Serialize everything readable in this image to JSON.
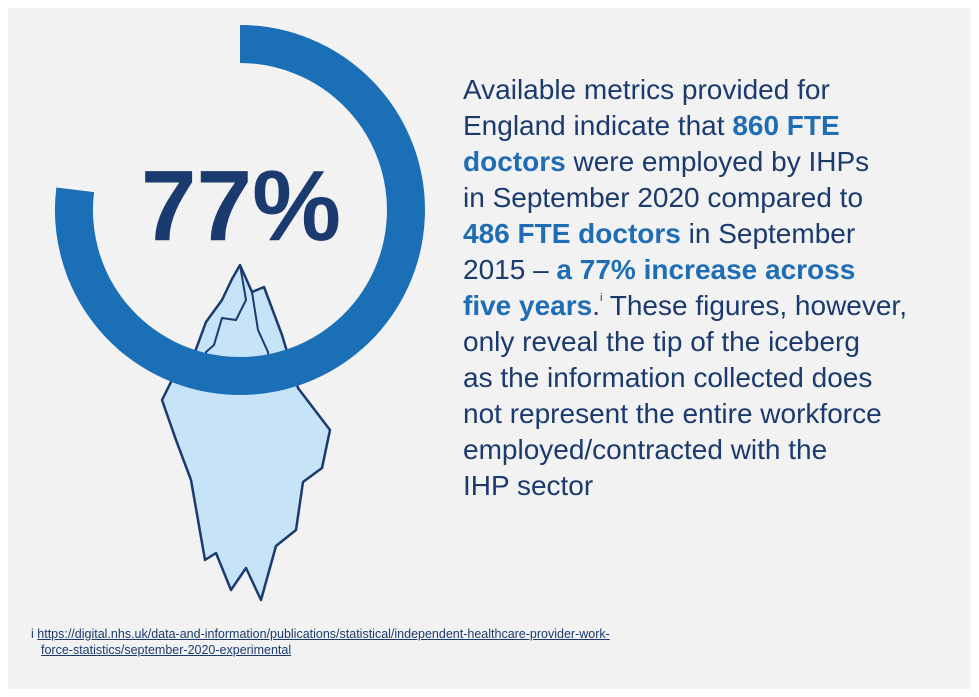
{
  "headline": "77%",
  "body": {
    "lines": [
      [
        {
          "text": "Available metrics provided for"
        }
      ],
      [
        {
          "text": "England indicate that "
        },
        {
          "text": "860 FTE",
          "bold": true
        }
      ],
      [
        {
          "text": "doctors",
          "bold": true
        },
        {
          "text": " were employed by IHPs"
        }
      ],
      [
        {
          "text": "in September 2020 compared to"
        }
      ],
      [
        {
          "text": "486 FTE doctors",
          "bold": true
        },
        {
          "text": " in September"
        }
      ],
      [
        {
          "text": "2015 – "
        },
        {
          "text": "a 77% increase across",
          "bold": true
        }
      ],
      [
        {
          "text": "five years",
          "bold": true
        },
        {
          "text": "."
        },
        {
          "text": "i",
          "sup": true
        },
        {
          "text": " These figures, however,"
        }
      ],
      [
        {
          "text": "only reveal the tip of the iceberg"
        }
      ],
      [
        {
          "text": "as the information collected does"
        }
      ],
      [
        {
          "text": "not represent the entire workforce"
        }
      ],
      [
        {
          "text": "employed/contracted with the"
        }
      ],
      [
        {
          "text": "IHP sector"
        }
      ]
    ]
  },
  "footnote": {
    "marker": "i",
    "url_lines": [
      "https://digital.nhs.uk/data-and-information/publications/statistical/independent-healthcare-provider-work-",
      "force-statistics/september-2020-experimental"
    ]
  }
}
